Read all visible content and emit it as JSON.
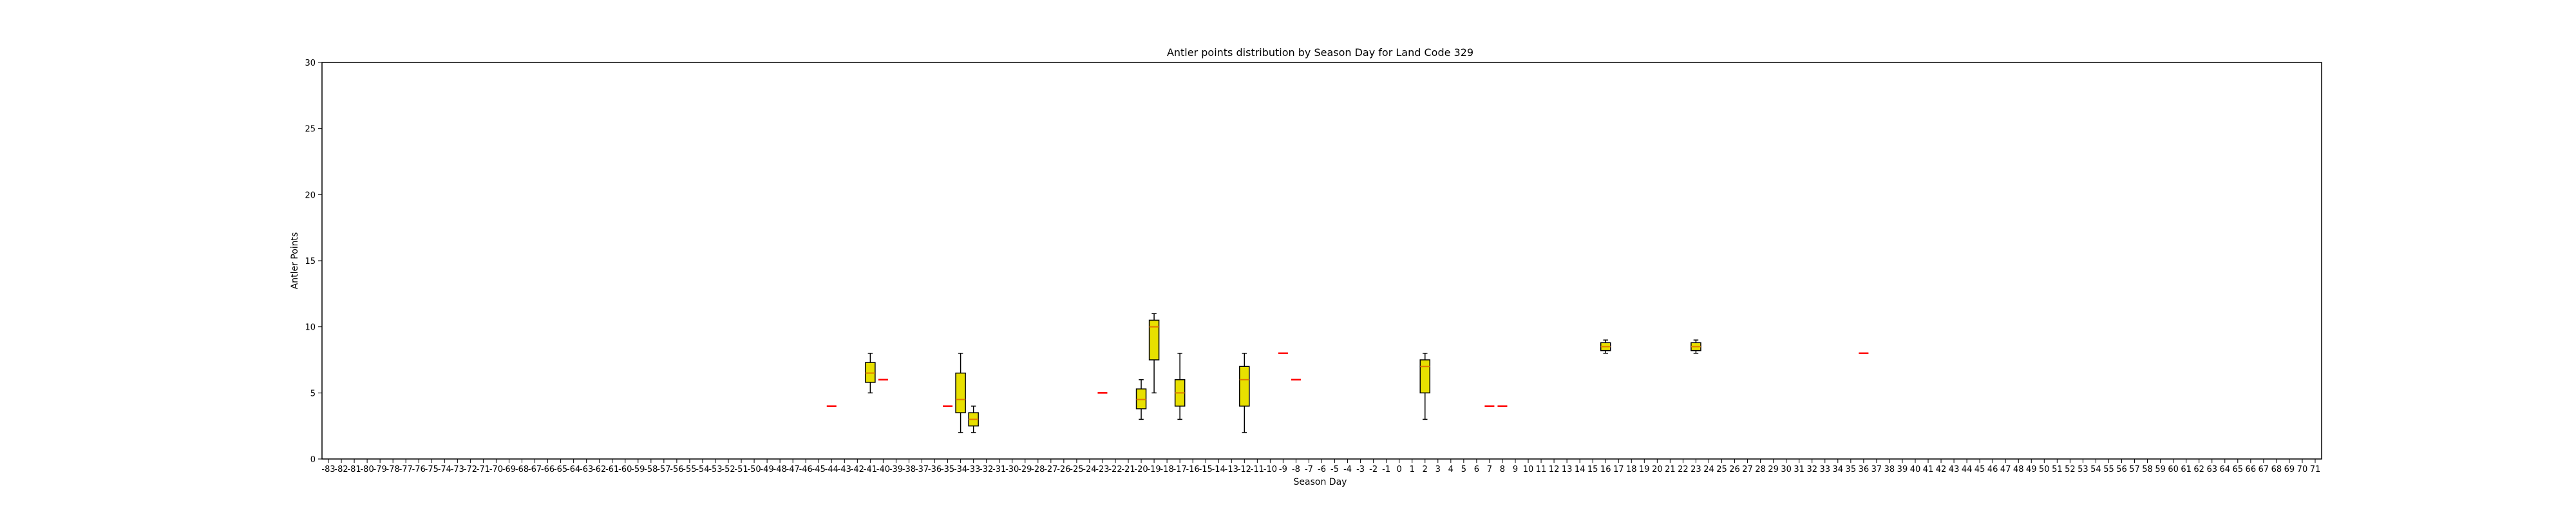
{
  "chart_data": {
    "type": "box",
    "title": "Antler points distribution by Season Day for Land Code 329",
    "xlabel": "Season Day",
    "ylabel": "Antler Points",
    "x_categories_range": [
      -83,
      71
    ],
    "ylim": [
      0,
      30
    ],
    "yticks": [
      0,
      5,
      10,
      15,
      20,
      25,
      30
    ],
    "grid": false,
    "colors": {
      "box_fill": "#e8e000",
      "median": "#e07b00",
      "single_point": "#ff0000",
      "whisker": "#000000"
    },
    "boxes": [
      {
        "day": -44,
        "q1": 4,
        "median": 4,
        "q3": 4,
        "whislo": 4,
        "whishi": 4
      },
      {
        "day": -41,
        "q1": 5.8,
        "median": 6.5,
        "q3": 7.3,
        "whislo": 5,
        "whishi": 8
      },
      {
        "day": -40,
        "q1": 6,
        "median": 6,
        "q3": 6,
        "whislo": 6,
        "whishi": 6
      },
      {
        "day": -35,
        "q1": 4,
        "median": 4,
        "q3": 4,
        "whislo": 4,
        "whishi": 4
      },
      {
        "day": -34,
        "q1": 3.5,
        "median": 4.5,
        "q3": 6.5,
        "whislo": 2,
        "whishi": 8
      },
      {
        "day": -33,
        "q1": 2.5,
        "median": 3,
        "q3": 3.5,
        "whislo": 2,
        "whishi": 4
      },
      {
        "day": -23,
        "q1": 5,
        "median": 5,
        "q3": 5,
        "whislo": 5,
        "whishi": 5
      },
      {
        "day": -20,
        "q1": 3.8,
        "median": 4.5,
        "q3": 5.3,
        "whislo": 3,
        "whishi": 6
      },
      {
        "day": -19,
        "q1": 7.5,
        "median": 10,
        "q3": 10.5,
        "whislo": 5,
        "whishi": 11
      },
      {
        "day": -17,
        "q1": 4,
        "median": 5,
        "q3": 6,
        "whislo": 3,
        "whishi": 8
      },
      {
        "day": -12,
        "q1": 4,
        "median": 6,
        "q3": 7,
        "whislo": 2,
        "whishi": 8
      },
      {
        "day": -9,
        "q1": 8,
        "median": 8,
        "q3": 8,
        "whislo": 8,
        "whishi": 8
      },
      {
        "day": -8,
        "q1": 6,
        "median": 6,
        "q3": 6,
        "whislo": 6,
        "whishi": 6
      },
      {
        "day": 2,
        "q1": 5,
        "median": 7,
        "q3": 7.5,
        "whislo": 3,
        "whishi": 8
      },
      {
        "day": 7,
        "q1": 4,
        "median": 4,
        "q3": 4,
        "whislo": 4,
        "whishi": 4
      },
      {
        "day": 8,
        "q1": 4,
        "median": 4,
        "q3": 4,
        "whislo": 4,
        "whishi": 4
      },
      {
        "day": 16,
        "q1": 8.2,
        "median": 8.5,
        "q3": 8.8,
        "whislo": 8,
        "whishi": 9
      },
      {
        "day": 23,
        "q1": 8.2,
        "median": 8.5,
        "q3": 8.8,
        "whislo": 8,
        "whishi": 9
      },
      {
        "day": 36,
        "q1": 8,
        "median": 8,
        "q3": 8,
        "whislo": 8,
        "whishi": 8
      }
    ]
  }
}
